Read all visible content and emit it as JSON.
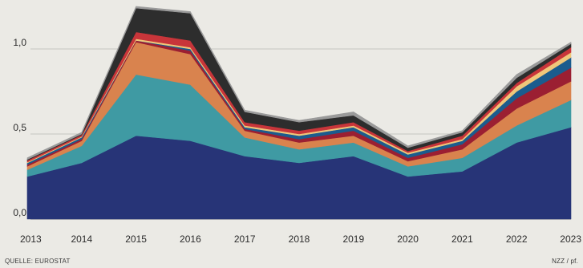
{
  "chart_data": {
    "type": "area",
    "stacked": true,
    "x": [
      2013,
      2014,
      2015,
      2016,
      2017,
      2018,
      2019,
      2020,
      2021,
      2022,
      2023
    ],
    "x_tick_labels": [
      "2013",
      "2014",
      "2015",
      "2016",
      "2017",
      "2018",
      "2019",
      "2020",
      "2021",
      "2022",
      "2023"
    ],
    "ylim": [
      0,
      1.2
    ],
    "y_ticks": [
      0,
      0.5,
      1.0
    ],
    "y_tick_labels": [
      "0,0",
      "0,5",
      "1,0"
    ],
    "grid": "horizontal",
    "series": [
      {
        "color": "#273477",
        "values": [
          0.25,
          0.33,
          0.49,
          0.46,
          0.37,
          0.33,
          0.37,
          0.25,
          0.28,
          0.45,
          0.54
        ]
      },
      {
        "color": "#3f9aa3",
        "values": [
          0.04,
          0.1,
          0.36,
          0.33,
          0.11,
          0.08,
          0.08,
          0.06,
          0.08,
          0.1,
          0.16
        ]
      },
      {
        "color": "#d9834e",
        "values": [
          0.02,
          0.03,
          0.19,
          0.18,
          0.04,
          0.04,
          0.04,
          0.03,
          0.05,
          0.1,
          0.11
        ]
      },
      {
        "color": "#9b1f32",
        "values": [
          0.01,
          0.01,
          0.01,
          0.02,
          0.01,
          0.02,
          0.03,
          0.02,
          0.03,
          0.06,
          0.08
        ]
      },
      {
        "color": "#1b5c8e",
        "values": [
          0.01,
          0.01,
          0.0,
          0.01,
          0.01,
          0.02,
          0.02,
          0.02,
          0.02,
          0.04,
          0.06
        ]
      },
      {
        "color": "#f0c77a",
        "values": [
          0.005,
          0.005,
          0.01,
          0.01,
          0.01,
          0.01,
          0.01,
          0.01,
          0.01,
          0.03,
          0.03
        ]
      },
      {
        "color": "#c8353a",
        "values": [
          0.01,
          0.01,
          0.04,
          0.04,
          0.02,
          0.02,
          0.02,
          0.01,
          0.02,
          0.02,
          0.03
        ]
      },
      {
        "color": "#2d2d2d",
        "values": [
          0.005,
          0.005,
          0.14,
          0.16,
          0.06,
          0.05,
          0.04,
          0.02,
          0.02,
          0.03,
          0.02
        ]
      },
      {
        "color": "#9a9a9a",
        "values": [
          0.01,
          0.01,
          0.01,
          0.01,
          0.01,
          0.01,
          0.02,
          0.01,
          0.01,
          0.02,
          0.01
        ]
      }
    ]
  },
  "footer": {
    "source": "QUELLE: EUROSTAT",
    "credit": "NZZ / pf."
  }
}
